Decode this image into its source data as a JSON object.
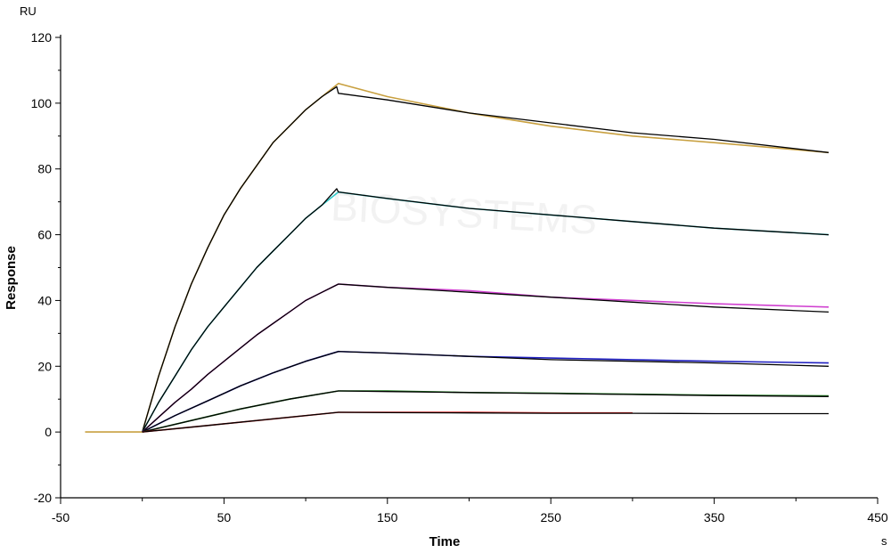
{
  "chart_data": {
    "type": "line",
    "title": "",
    "xlabel": "Time",
    "ylabel": "Response",
    "x_unit": "s",
    "y_unit": "RU",
    "xlim": [
      -50,
      450
    ],
    "ylim": [
      -20,
      120
    ],
    "x_major_ticks": [
      -50,
      50,
      150,
      250,
      350,
      450
    ],
    "x_minor_ticks": [
      0,
      100,
      200,
      300,
      400
    ],
    "y_ticks": [
      -20,
      0,
      20,
      40,
      60,
      80,
      100,
      120
    ],
    "grid": false,
    "legend": "none",
    "watermark": "BIOSYSTEMS",
    "series": [
      {
        "color": "#c8a040",
        "x": [
          -35,
          0,
          10,
          20,
          30,
          40,
          50,
          60,
          70,
          80,
          90,
          100,
          110,
          120,
          150,
          200,
          250,
          300,
          350,
          420
        ],
        "values": [
          0,
          0,
          17,
          32,
          45,
          56,
          66,
          74,
          81,
          88,
          93,
          98,
          102,
          106,
          102,
          97,
          93,
          90,
          88,
          85
        ]
      },
      {
        "color": "#000000",
        "x": [
          0,
          10,
          20,
          30,
          40,
          50,
          60,
          70,
          80,
          90,
          100,
          110,
          119,
          120,
          150,
          200,
          250,
          300,
          350,
          420
        ],
        "values": [
          0,
          17,
          32,
          45,
          56,
          66,
          74,
          81,
          88,
          93,
          98,
          102,
          105,
          103,
          101,
          97,
          94,
          91,
          89,
          85
        ]
      },
      {
        "color": "#30c8c8",
        "x": [
          0,
          10,
          20,
          30,
          40,
          50,
          60,
          70,
          80,
          90,
          100,
          110,
          120,
          150,
          200,
          250,
          300,
          350,
          420
        ],
        "values": [
          0,
          9,
          17,
          25,
          32,
          38,
          44,
          50,
          55,
          60,
          65,
          69,
          73,
          71,
          68,
          66,
          64,
          62,
          60
        ]
      },
      {
        "color": "#000000",
        "x": [
          0,
          10,
          20,
          30,
          40,
          50,
          60,
          70,
          80,
          90,
          100,
          110,
          119,
          120,
          150,
          200,
          250,
          300,
          350,
          420
        ],
        "values": [
          0,
          9,
          17,
          25,
          32,
          38,
          44,
          50,
          55,
          60,
          65,
          69,
          74,
          73,
          71,
          68,
          66,
          64,
          62,
          60
        ]
      },
      {
        "color": "#d040d0",
        "x": [
          0,
          10,
          20,
          30,
          40,
          50,
          60,
          70,
          80,
          90,
          100,
          110,
          120,
          150,
          200,
          250,
          300,
          350,
          420
        ],
        "values": [
          0,
          4.5,
          9,
          13,
          17.5,
          21.5,
          25.5,
          29.5,
          33,
          36.5,
          40,
          42.5,
          45,
          44,
          43,
          41,
          40,
          39,
          38
        ]
      },
      {
        "color": "#000000",
        "x": [
          0,
          10,
          20,
          30,
          40,
          50,
          60,
          70,
          80,
          90,
          100,
          110,
          120,
          150,
          200,
          250,
          300,
          350,
          420
        ],
        "values": [
          0,
          4.5,
          9,
          13,
          17.5,
          21.5,
          25.5,
          29.5,
          33,
          36.5,
          40,
          42.5,
          45,
          44,
          42.5,
          41,
          39.5,
          38,
          36.5
        ]
      },
      {
        "color": "#2020c0",
        "x": [
          0,
          20,
          40,
          60,
          80,
          100,
          120,
          150,
          200,
          250,
          300,
          350,
          420
        ],
        "values": [
          0,
          5,
          9.5,
          14,
          18,
          21.5,
          24.5,
          24,
          23,
          22.5,
          22,
          21.5,
          21
        ]
      },
      {
        "color": "#000000",
        "x": [
          0,
          20,
          40,
          60,
          80,
          100,
          120,
          150,
          200,
          250,
          300,
          350,
          420
        ],
        "values": [
          0,
          5,
          9.5,
          14,
          18,
          21.5,
          24.5,
          24,
          23,
          22,
          21.5,
          21,
          20
        ]
      },
      {
        "color": "#208020",
        "x": [
          0,
          30,
          60,
          90,
          120,
          150,
          200,
          250,
          300,
          350,
          420
        ],
        "values": [
          0,
          3.5,
          7,
          10,
          12.5,
          12.5,
          12,
          11.8,
          11.5,
          11.2,
          11
        ]
      },
      {
        "color": "#000000",
        "x": [
          0,
          30,
          60,
          90,
          120,
          150,
          200,
          250,
          300,
          350,
          420
        ],
        "values": [
          0,
          3.5,
          7,
          10,
          12.5,
          12.3,
          12,
          11.7,
          11.4,
          11.1,
          10.8
        ]
      },
      {
        "color": "#d02020",
        "x": [
          0,
          40,
          80,
          120,
          150,
          200,
          250,
          300
        ],
        "values": [
          0,
          2,
          4,
          6,
          6,
          6,
          5.8,
          5.8
        ]
      },
      {
        "color": "#000000",
        "x": [
          0,
          40,
          80,
          120,
          150,
          200,
          250,
          300,
          350,
          420
        ],
        "values": [
          0,
          2,
          4,
          6,
          5.9,
          5.8,
          5.7,
          5.7,
          5.6,
          5.6
        ]
      }
    ]
  }
}
